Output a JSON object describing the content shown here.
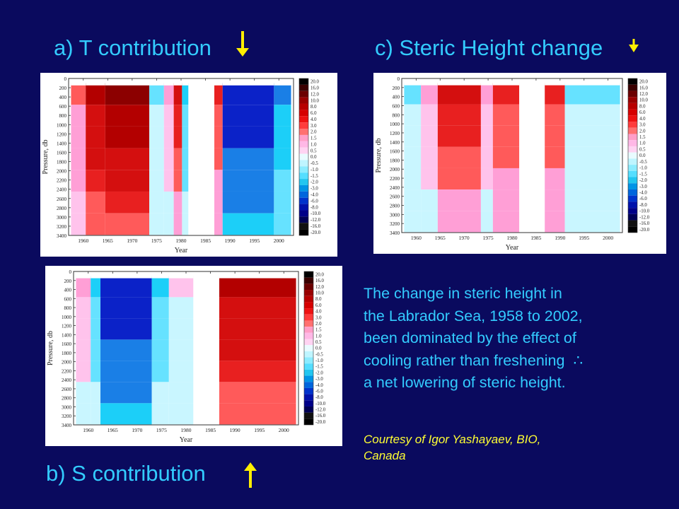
{
  "titles": {
    "a": "a) T contribution",
    "b": "b) S contribution",
    "c": "c) Steric Height change"
  },
  "caption": {
    "line1": "The change in steric height in",
    "line2": "the Labrador Sea, 1958 to 2002,",
    "line3": "been dominated by the effect of",
    "line4": "cooling rather than freshening",
    "therefore_symbol": "∴",
    "line5": "a net lowering of steric height."
  },
  "credit": {
    "line1": "Courtesy of Igor Yashayaev, BIO,",
    "line2": "Canada"
  },
  "colors": {
    "background": "#0a0a5e",
    "title_text": "#33ccff",
    "credit_text": "#ffff33",
    "arrow": "#ffee00"
  },
  "arrows": {
    "a": "down-arrow",
    "b": "up-arrow",
    "c": "down-arrow-small"
  },
  "chart_data": [
    {
      "id": "a",
      "type": "heatmap",
      "title": "",
      "xlabel": "Year",
      "ylabel": "Pressure, db",
      "xlim": [
        1957,
        2003
      ],
      "ylim": [
        3400,
        0
      ],
      "x_ticks": [
        "1960",
        "1965",
        "1970",
        "1975",
        "1980",
        "1985",
        "1990",
        "1995",
        "2000"
      ],
      "y_ticks": [
        "0",
        "200",
        "400",
        "600",
        "800",
        "1000",
        "1200",
        "1400",
        "1600",
        "1800",
        "2000",
        "2200",
        "2400",
        "2600",
        "2800",
        "3000",
        "3200",
        "3400"
      ],
      "colorbar_labels": [
        "20.0",
        "16.0",
        "12.0",
        "10.0",
        "8.0",
        "6.0",
        "4.0",
        "3.0",
        "2.0",
        "1.5",
        "1.0",
        "0.5",
        "0.0",
        "-0.5",
        "-1.0",
        "-1.5",
        "-2.0",
        "-3.0",
        "-4.0",
        "-6.0",
        "-8.0",
        "-10.0",
        "-12.0",
        "-16.0",
        "-20.0"
      ],
      "gap_years": [
        1981.5,
        1986.8
      ],
      "features": [
        {
          "start": 1957.5,
          "end": 1960.5,
          "level": 2
        },
        {
          "start": 1960.5,
          "end": 1964.5,
          "level": 6
        },
        {
          "start": 1964.5,
          "end": 1973.5,
          "level": 8
        },
        {
          "start": 1973.5,
          "end": 1976.5,
          "level": -1
        },
        {
          "start": 1976.5,
          "end": 1978.5,
          "level": 1
        },
        {
          "start": 1978.5,
          "end": 1980.2,
          "level": 4
        },
        {
          "start": 1980.2,
          "end": 1981.5,
          "level": -2
        },
        {
          "start": 1986.8,
          "end": 1988.5,
          "level": 3
        },
        {
          "start": 1988.5,
          "end": 1999.0,
          "level": -8
        },
        {
          "start": 1999.0,
          "end": 2002.5,
          "level": -3
        }
      ]
    },
    {
      "id": "b",
      "type": "heatmap",
      "title": "",
      "xlabel": "Year",
      "ylabel": "Pressure, db",
      "xlim": [
        1957,
        2003
      ],
      "ylim": [
        3400,
        0
      ],
      "x_ticks": [
        "1960",
        "1965",
        "1970",
        "1975",
        "1980",
        "1985",
        "1990",
        "1995",
        "2000"
      ],
      "y_ticks": [
        "0",
        "200",
        "400",
        "600",
        "800",
        "1000",
        "1200",
        "1400",
        "1600",
        "1800",
        "2000",
        "2200",
        "2400",
        "2600",
        "2800",
        "3000",
        "3200",
        "3400"
      ],
      "colorbar_labels": [
        "20.0",
        "16.0",
        "12.0",
        "10.0",
        "8.0",
        "6.0",
        "4.0",
        "3.0",
        "2.0",
        "1.5",
        "1.0",
        "0.5",
        "0.0",
        "-0.5",
        "-1.0",
        "-1.5",
        "-2.0",
        "-3.0",
        "-4.0",
        "-6.0",
        "-8.0",
        "-10.0",
        "-12.0",
        "-16.0",
        "-20.0"
      ],
      "gap_years": [
        1981.5,
        1986.8
      ],
      "features": [
        {
          "start": 1957.5,
          "end": 1960.5,
          "level": 1
        },
        {
          "start": 1960.5,
          "end": 1962.5,
          "level": -2
        },
        {
          "start": 1962.5,
          "end": 1973.0,
          "level": -8
        },
        {
          "start": 1973.0,
          "end": 1976.5,
          "level": -2
        },
        {
          "start": 1976.5,
          "end": 1981.5,
          "level": 0.5
        },
        {
          "start": 1986.8,
          "end": 2002.5,
          "level": 6
        }
      ]
    },
    {
      "id": "c",
      "type": "heatmap",
      "title": "",
      "xlabel": "Year",
      "ylabel": "Pressure, db",
      "xlim": [
        1957,
        2003
      ],
      "ylim": [
        3400,
        0
      ],
      "x_ticks": [
        "1960",
        "1965",
        "1970",
        "1975",
        "1980",
        "1985",
        "1990",
        "1995",
        "2000"
      ],
      "y_ticks": [
        "0",
        "200",
        "400",
        "600",
        "800",
        "1000",
        "1200",
        "1400",
        "1600",
        "1800",
        "2000",
        "2200",
        "2400",
        "2600",
        "2800",
        "3000",
        "3200",
        "3400"
      ],
      "colorbar_labels": [
        "20.0",
        "16.0",
        "12.0",
        "10.0",
        "8.0",
        "6.0",
        "4.0",
        "3.0",
        "2.0",
        "1.5",
        "1.0",
        "0.5",
        "0.0",
        "-0.5",
        "-1.0",
        "-1.5",
        "-2.0",
        "-3.0",
        "-4.0",
        "-6.0",
        "-8.0",
        "-10.0",
        "-12.0",
        "-16.0",
        "-20.0"
      ],
      "gap_years": [
        1981.5,
        1986.8
      ],
      "features": [
        {
          "start": 1957.5,
          "end": 1961.0,
          "level": -1
        },
        {
          "start": 1961.0,
          "end": 1964.5,
          "level": 1
        },
        {
          "start": 1964.5,
          "end": 1973.5,
          "level": 4
        },
        {
          "start": 1973.5,
          "end": 1976.0,
          "level": 1
        },
        {
          "start": 1976.0,
          "end": 1981.5,
          "level": 3
        },
        {
          "start": 1986.8,
          "end": 1991.0,
          "level": 3
        },
        {
          "start": 1991.0,
          "end": 2002.5,
          "level": -1
        }
      ]
    }
  ]
}
